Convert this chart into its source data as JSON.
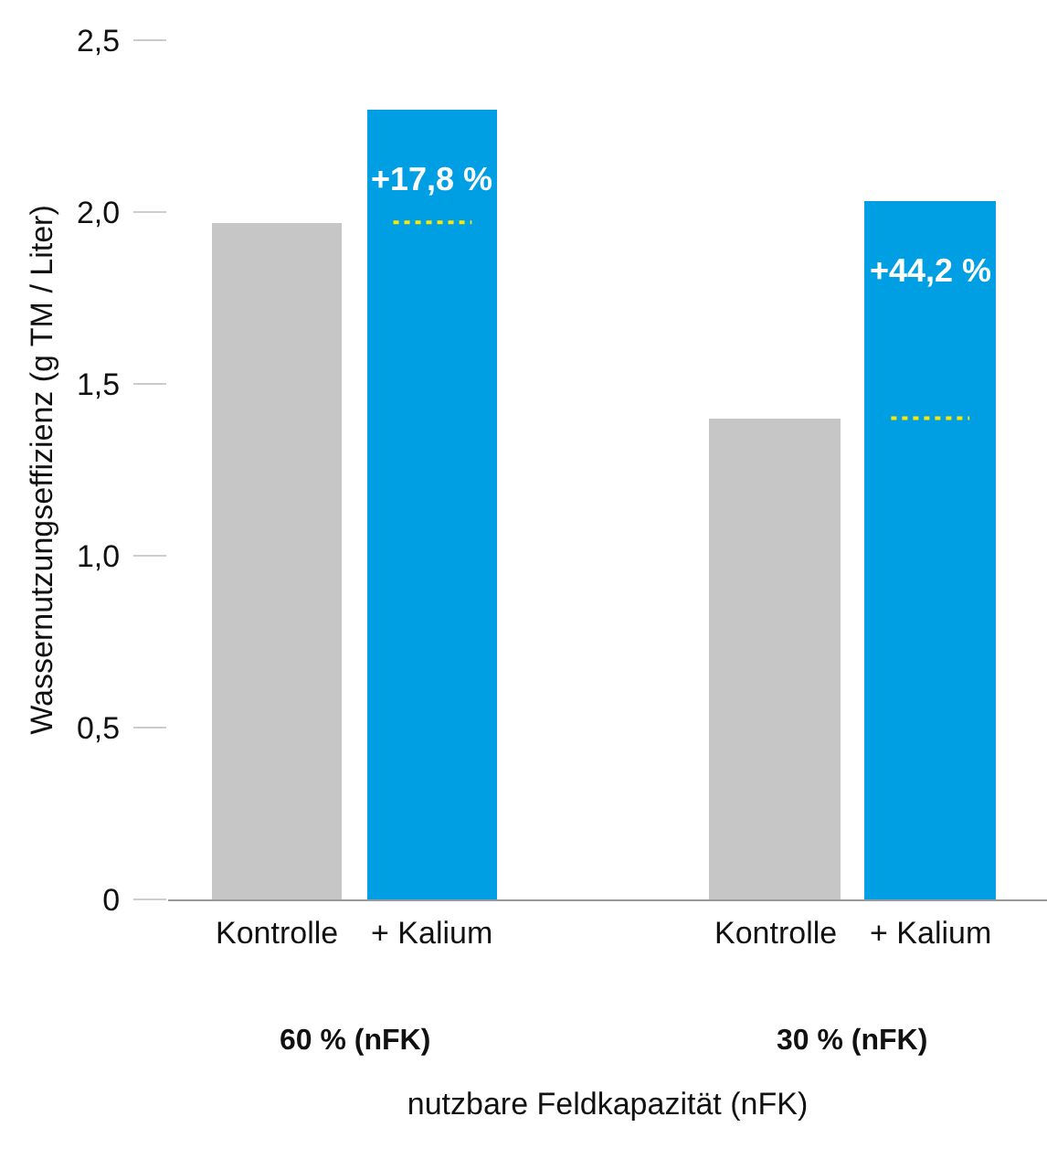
{
  "chart_data": {
    "type": "bar",
    "ylabel": "Wassernutzungseffizienz (g TM / Liter)",
    "xlabel": "nutzbare Feldkapazität (nFK)",
    "categories": [
      "60 % (nFK)",
      "30 % (nFK)"
    ],
    "series": [
      {
        "name": "Kontrolle",
        "color": "#c6c6c6",
        "values": [
          1.97,
          1.4
        ]
      },
      {
        "name": "+ Kalium",
        "color": "#009fe3",
        "values": [
          2.3,
          2.03
        ]
      }
    ],
    "ylim": [
      0,
      2.5
    ],
    "yticks": [
      {
        "value": 0,
        "label": "0"
      },
      {
        "value": 0.5,
        "label": "0,5"
      },
      {
        "value": 1,
        "label": "1,0"
      },
      {
        "value": 1.5,
        "label": "1,5"
      },
      {
        "value": 2,
        "label": "2,0"
      },
      {
        "value": 2.5,
        "label": "2,5"
      }
    ],
    "grid": false,
    "legend": false,
    "ref_lines": [
      {
        "axis": "y",
        "value": 1.97,
        "color": "#ffe600",
        "line_style": "dotted"
      },
      {
        "axis": "y",
        "value": 1.4,
        "color": "#ffe600",
        "line_style": "dotted"
      }
    ],
    "annotations": [
      "+17,8 %",
      "+44,2 %"
    ]
  }
}
